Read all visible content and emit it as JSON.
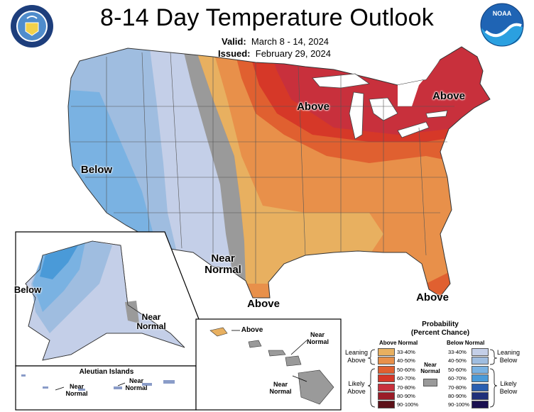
{
  "header": {
    "title": "8-14 Day Temperature Outlook",
    "valid_label": "Valid:",
    "valid_value": "March 8 - 14, 2024",
    "issued_label": "Issued:",
    "issued_value": "February 29, 2024"
  },
  "logos": {
    "left": "department-of-commerce-seal",
    "right": "noaa-logo"
  },
  "map_labels": {
    "conus_above_midwest": "Above",
    "conus_above_northeast": "Above",
    "conus_below_west": "Below",
    "conus_near_normal": "Near\nNormal",
    "conus_above_texas": "Above",
    "conus_above_florida": "Above",
    "alaska_below": "Below",
    "alaska_near_normal": "Near\nNormal",
    "aleutian_title": "Aleutian Islands",
    "aleutian_near_normal_1": "Near\nNormal",
    "aleutian_near_normal_2": "Near\nNormal",
    "hawaii_above": "Above",
    "hawaii_near_normal_1": "Near\nNormal",
    "hawaii_near_normal_2": "Near\nNormal"
  },
  "legend": {
    "title": "Probability\n(Percent Chance)",
    "above_header": "Above Normal",
    "below_header": "Below Normal",
    "near_normal": "Near\nNormal",
    "leaning_above": "Leaning\nAbove",
    "likely_above": "Likely\nAbove",
    "leaning_below": "Leaning\nBelow",
    "likely_below": "Likely\nBelow",
    "above_bins": [
      {
        "label": "33-40%",
        "color": "#e8b060"
      },
      {
        "label": "40-50%",
        "color": "#e8904a"
      },
      {
        "label": "50-60%",
        "color": "#e06030"
      },
      {
        "label": "60-70%",
        "color": "#d63828"
      },
      {
        "label": "70-80%",
        "color": "#c8303c"
      },
      {
        "label": "80-90%",
        "color": "#9a1c28"
      },
      {
        "label": "90-100%",
        "color": "#5c1018"
      }
    ],
    "below_bins": [
      {
        "label": "33-40%",
        "color": "#c4cfe8"
      },
      {
        "label": "40-50%",
        "color": "#9fbde0"
      },
      {
        "label": "50-60%",
        "color": "#7ab2e2"
      },
      {
        "label": "60-70%",
        "color": "#4a9ad8"
      },
      {
        "label": "70-80%",
        "color": "#2a5fb0"
      },
      {
        "label": "80-90%",
        "color": "#20307a"
      },
      {
        "label": "90-100%",
        "color": "#1a1050"
      }
    ],
    "near_color": "#9a9a9a"
  }
}
